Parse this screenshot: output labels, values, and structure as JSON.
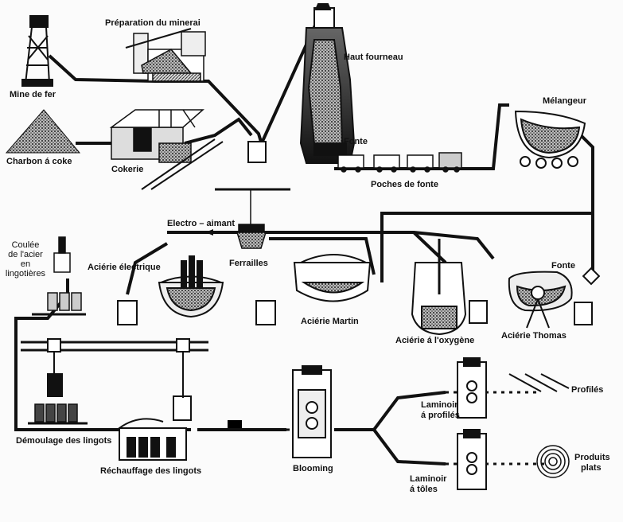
{
  "labels": {
    "mine": "Mine de fer",
    "preparation": "Préparation du minerai",
    "charbon": "Charbon á coke",
    "cokerie": "Cokerie",
    "haut_fourneau": "Haut fourneau",
    "fonte_top": "Fonte",
    "poches": "Poches de fonte",
    "melangeur": "Mélangeur",
    "electro": "Electro – aimant",
    "ferrailles": "Ferrailles",
    "coulee_1": "Coulée",
    "coulee_2": "de l'acier",
    "coulee_3": "en",
    "coulee_4": "lingotières",
    "acierie_electrique": "Aciérie électrique",
    "acierie_martin": "Aciérie Martin",
    "acierie_oxygene": "Aciérie á l'oxygène",
    "fonte_right": "Fonte",
    "acierie_thomas": "Aciérie Thomas",
    "demoulage": "Démoulage des lingots",
    "rechauffage": "Réchauffage des lingots",
    "blooming": "Blooming",
    "laminoir_profiles_1": "Laminoir",
    "laminoir_profiles_2": "á profilés",
    "profiles": "Profilés",
    "laminoir_toles_1": "Laminoir",
    "laminoir_toles_2": "á tôles",
    "produits_1": "Produits",
    "produits_2": "plats"
  }
}
